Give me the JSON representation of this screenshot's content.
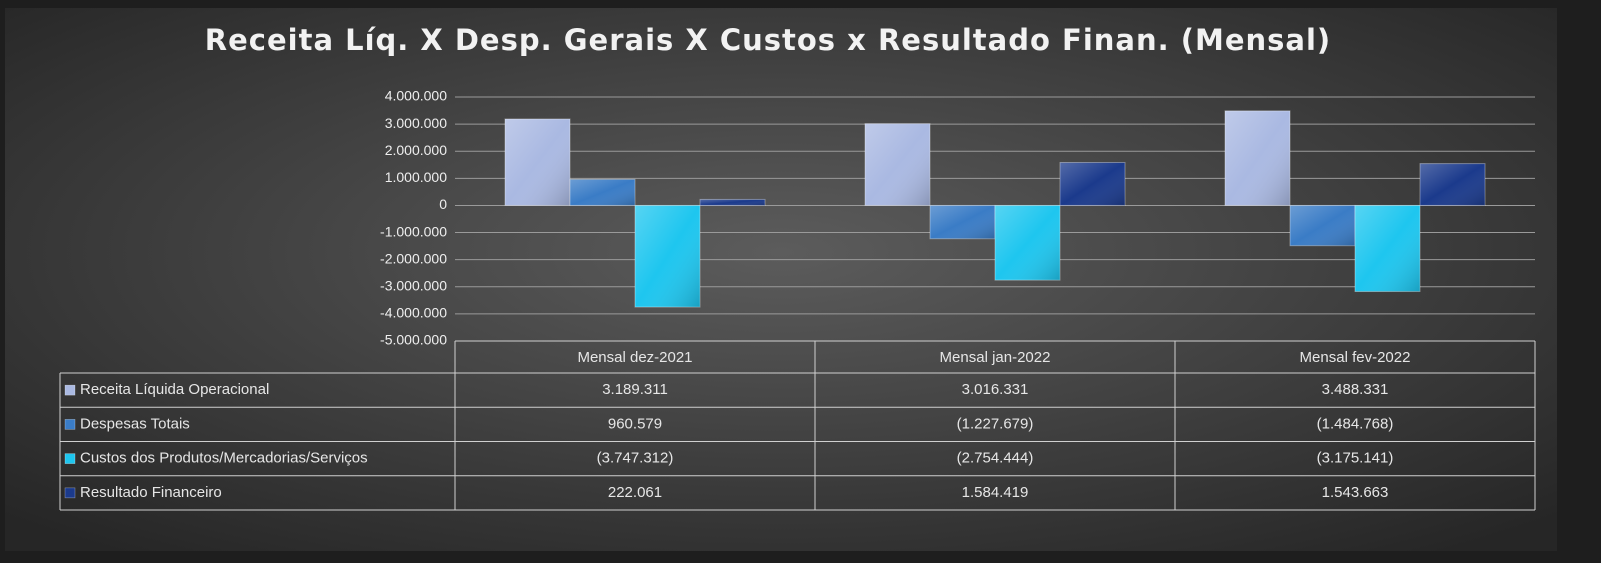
{
  "chart_data": {
    "type": "bar",
    "title": "Receita Líq. X Desp. Gerais X Custos x Resultado Finan. (Mensal)",
    "categories": [
      "Mensal dez-2021",
      "Mensal jan-2022",
      "Mensal fev-2022"
    ],
    "series": [
      {
        "name": "Receita Líquida Operacional",
        "color": "#aab9e2",
        "values": [
          3189311,
          3016331,
          3488331
        ],
        "value_labels": [
          "3.189.311",
          "3.016.331",
          "3.488.331"
        ]
      },
      {
        "name": "Despesas Totais",
        "color": "#3a7cc6",
        "values": [
          960579,
          -1227679,
          -1484768
        ],
        "value_labels": [
          "960.579",
          "(1.227.679)",
          "(1.484.768)"
        ]
      },
      {
        "name": "Custos dos Produtos/Mercadorias/Serviços",
        "color": "#1ec6ef",
        "values": [
          -3747312,
          -2754444,
          -3175141
        ],
        "value_labels": [
          "(3.747.312)",
          "(2.754.444)",
          "(3.175.141)"
        ]
      },
      {
        "name": "Resultado Financeiro",
        "color": "#1b3a8c",
        "values": [
          222061,
          1584419,
          1543663
        ],
        "value_labels": [
          "222.061",
          "1.584.419",
          "1.543.663"
        ]
      }
    ],
    "ylim": [
      -5000000,
      4000000
    ],
    "yticks": [
      {
        "value": 4000000,
        "label": "4.000.000"
      },
      {
        "value": 3000000,
        "label": "3.000.000"
      },
      {
        "value": 2000000,
        "label": "2.000.000"
      },
      {
        "value": 1000000,
        "label": "1.000.000"
      },
      0,
      {
        "value": -1000000,
        "label": "-1.000.000"
      },
      {
        "value": -2000000,
        "label": "-2.000.000"
      },
      {
        "value": -3000000,
        "label": "-3.000.000"
      },
      {
        "value": -4000000,
        "label": "-4.000.000"
      },
      {
        "value": -5000000,
        "label": "-5.000.000"
      }
    ],
    "grid": true
  }
}
